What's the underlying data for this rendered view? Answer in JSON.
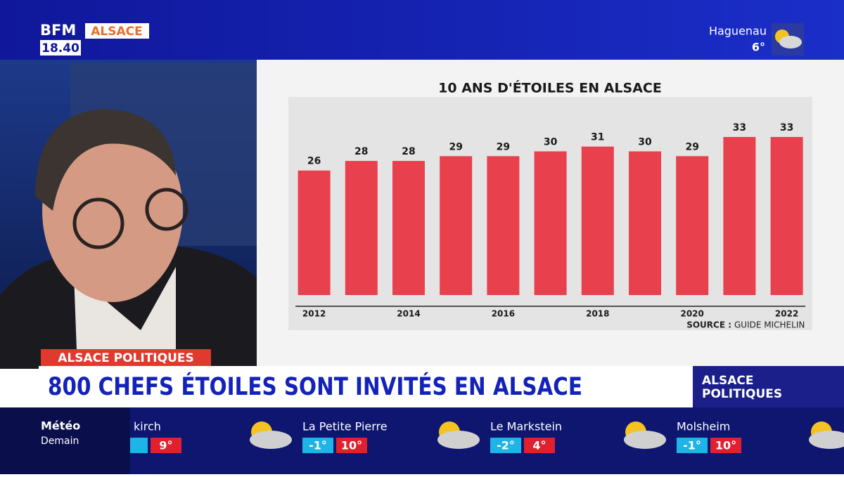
{
  "channel": {
    "brand": "BFM",
    "region": "ALSACE",
    "time": "18.40"
  },
  "weather_top": {
    "city": "Haguenau",
    "temp": "6°"
  },
  "chart_data": {
    "type": "bar",
    "title": "10 ANS D'ÉTOILES EN ALSACE",
    "categories": [
      "2012",
      null,
      "2014",
      null,
      "2016",
      null,
      "2018",
      null,
      "2020",
      null,
      "2022"
    ],
    "values": [
      26,
      28,
      28,
      29,
      29,
      30,
      31,
      30,
      29,
      33,
      33
    ],
    "color": "#e8404c",
    "source_label": "SOURCE :",
    "source": "GUIDE MICHELIN"
  },
  "lower_third": {
    "tag": "ALSACE POLITIQUES",
    "headline": "800 CHEFS ÉTOILES SONT INVITÉS EN ALSACE",
    "show_logo": [
      "ALSACE",
      "POLITIQUES"
    ]
  },
  "ticker": {
    "title": "Météo",
    "subtitle": "Demain",
    "cities": [
      {
        "name": "kirch",
        "max": "9°"
      },
      {
        "name": "La Petite Pierre",
        "min": "-1°",
        "max": "10°"
      },
      {
        "name": "Le Markstein",
        "min": "-2°",
        "max": "4°"
      },
      {
        "name": "Molsheim",
        "min": "-1°",
        "max": "10°"
      }
    ]
  }
}
